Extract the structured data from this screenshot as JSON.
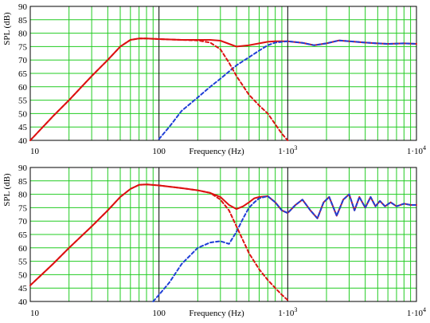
{
  "chart_data": [
    {
      "type": "line",
      "xscale": "log",
      "xlim": [
        10,
        10000
      ],
      "ylim": [
        40,
        90
      ],
      "xlabel": "Frequency (Hz)",
      "ylabel": "SPL (dB)",
      "grid": true,
      "xticks": [
        "10",
        "100",
        "1·10",
        "1·10"
      ],
      "xtick_exponents": [
        "",
        "",
        "3",
        "4"
      ],
      "yticks": [
        "90",
        "85",
        "80",
        "75",
        "70",
        "65",
        "60",
        "55",
        "50",
        "45",
        "40"
      ],
      "colors": {
        "grid_minor": "#22cc22",
        "grid_major": "#000000",
        "red": "#dd1111",
        "blue": "#1f3fd6"
      },
      "series": [
        {
          "style": "solid",
          "color": "#dd1111",
          "x": [
            10,
            15,
            20,
            30,
            40,
            50,
            60,
            70,
            80,
            100,
            150,
            200,
            250,
            300,
            350,
            400,
            500,
            600,
            700,
            800,
            1000,
            1300,
            1600,
            2000,
            2500,
            3000,
            4000,
            5000,
            6000,
            8000,
            10000
          ],
          "y": [
            40,
            49,
            55,
            64,
            70,
            75,
            77.5,
            78,
            78,
            77.8,
            77.5,
            77.5,
            77.5,
            77.2,
            76,
            75,
            75.5,
            76.2,
            76.8,
            77,
            77,
            76.4,
            75.5,
            76.2,
            77.3,
            77,
            76.5,
            76.2,
            76,
            76.2,
            76
          ]
        },
        {
          "style": "dashed",
          "color": "#1f3fd6",
          "x": [
            100,
            120,
            150,
            200,
            250,
            300,
            400,
            500,
            600,
            700,
            800,
            1000,
            1300,
            1600,
            2000,
            2500,
            3000,
            4000,
            5000,
            6000,
            8000,
            10000
          ],
          "y": [
            40.5,
            45,
            51,
            56,
            60,
            63,
            68,
            71,
            73.5,
            75.5,
            76.5,
            77,
            76.4,
            75.5,
            76.2,
            77.3,
            77,
            76.5,
            76.2,
            76,
            76.2,
            76
          ]
        },
        {
          "style": "dashed",
          "color": "#dd1111",
          "x": [
            10,
            15,
            20,
            30,
            40,
            50,
            60,
            70,
            80,
            100,
            150,
            200,
            250,
            300,
            350,
            400,
            500,
            600,
            700,
            800,
            900,
            1000
          ],
          "y": [
            40,
            49,
            55,
            64,
            70,
            75,
            77.5,
            78,
            78,
            77.8,
            77.5,
            77.3,
            76.5,
            74,
            69,
            64,
            57,
            53,
            50,
            46,
            42.5,
            40
          ]
        }
      ]
    },
    {
      "type": "line",
      "xscale": "log",
      "xlim": [
        10,
        10000
      ],
      "ylim": [
        40,
        90
      ],
      "xlabel": "Frequency (Hz)",
      "ylabel": "SPL (dB)",
      "grid": true,
      "xticks": [
        "10",
        "100",
        "1·10",
        "1·10"
      ],
      "xtick_exponents": [
        "",
        "",
        "3",
        "4"
      ],
      "yticks": [
        "90",
        "85",
        "80",
        "75",
        "70",
        "65",
        "60",
        "55",
        "50",
        "45",
        "40"
      ],
      "series": [
        {
          "style": "solid",
          "color": "#dd1111",
          "x": [
            10,
            15,
            20,
            30,
            40,
            50,
            60,
            70,
            80,
            100,
            150,
            200,
            250,
            300,
            350,
            400,
            450,
            500,
            550,
            600,
            700,
            800,
            900,
            1000,
            1150,
            1300,
            1500,
            1700,
            1900,
            2100,
            2400,
            2700,
            3000,
            3300,
            3600,
            4000,
            4400,
            4800,
            5200,
            5700,
            6300,
            7000,
            8000,
            9000,
            10000
          ],
          "y": [
            46,
            54,
            60,
            68,
            74,
            79,
            82,
            83.5,
            83.7,
            83.3,
            82.3,
            81.5,
            80.5,
            79,
            76,
            74.5,
            75.5,
            77,
            78.5,
            79,
            79.3,
            77,
            74,
            73,
            76,
            78,
            74,
            71,
            77,
            79,
            72,
            78,
            80,
            74,
            79,
            75,
            79,
            75.5,
            77.5,
            75.5,
            77,
            75.5,
            76.5,
            76,
            76
          ]
        },
        {
          "style": "dashed",
          "color": "#1f3fd6",
          "x": [
            90,
            100,
            120,
            150,
            200,
            250,
            300,
            350,
            400,
            450,
            500,
            550,
            600,
            700,
            800,
            900,
            1000,
            1150,
            1300,
            1500,
            1700,
            1900,
            2100,
            2400,
            2700,
            3000,
            3300,
            3600,
            4000,
            4400,
            4800,
            5200,
            5700,
            6300,
            7000,
            8000,
            9000,
            10000
          ],
          "y": [
            40,
            42.5,
            47,
            54,
            60,
            62,
            62.5,
            61.5,
            66,
            71,
            75,
            77,
            78.5,
            79.3,
            77,
            74,
            73,
            76,
            78,
            74,
            71,
            77,
            79,
            72,
            78,
            80,
            74,
            79,
            75,
            79,
            75.5,
            77.5,
            75.5,
            77,
            75.5,
            76.5,
            76,
            76
          ]
        },
        {
          "style": "dashed",
          "color": "#dd1111",
          "x": [
            10,
            15,
            20,
            30,
            40,
            50,
            60,
            70,
            80,
            100,
            150,
            200,
            250,
            300,
            350,
            400,
            500,
            600,
            700,
            800,
            900,
            1000
          ],
          "y": [
            46,
            54,
            60,
            68,
            74,
            79,
            82,
            83.5,
            83.7,
            83.3,
            82.3,
            81.5,
            80.5,
            78,
            74,
            68,
            58,
            52,
            48,
            45,
            42.5,
            40.5
          ]
        }
      ]
    }
  ]
}
